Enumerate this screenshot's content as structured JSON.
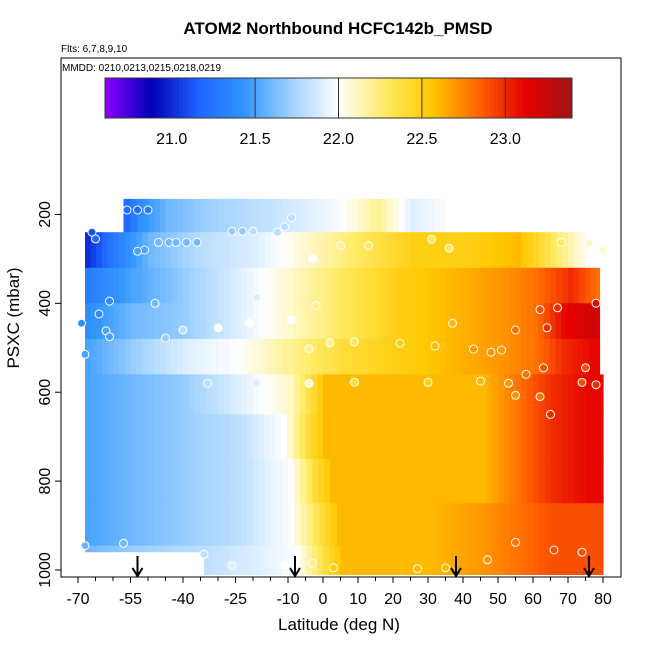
{
  "chart_data": {
    "type": "heatmap",
    "title": "ATOM2 Northbound HCFC142b_PMSD",
    "subtitle_flights": "Flts: 6,7,8,9,10",
    "subtitle_dates": "MMDD: 0210,0213,0215,0218,0219",
    "xlabel": "Latitude (deg N)",
    "ylabel": "PSXC (mbar)",
    "xlim": [
      -70,
      80
    ],
    "ylim": [
      1020,
      0
    ],
    "x_ticks": [
      -70,
      -55,
      -40,
      -25,
      -10,
      0,
      10,
      20,
      30,
      40,
      50,
      60,
      70,
      80
    ],
    "x_tick_labels": [
      "-70",
      "-55",
      "-40",
      "-25",
      "-10",
      "0",
      "10",
      "20",
      "30",
      "40",
      "50",
      "60",
      "70",
      "80"
    ],
    "y_ticks": [
      200,
      400,
      600,
      800,
      1000
    ],
    "y_tick_labels": [
      "200",
      "400",
      "600",
      "800",
      "1000"
    ],
    "colorbar": {
      "range": [
        20.6,
        23.4
      ],
      "ticks": [
        21.0,
        21.5,
        22.0,
        22.5,
        23.0
      ],
      "tick_labels": [
        "21.0",
        "21.5",
        "22.0",
        "22.5",
        "23.0"
      ],
      "colors": [
        "#8b00ff",
        "#0000b4",
        "#1e64ff",
        "#3296ff",
        "#a0d2ff",
        "#ffffff",
        "#ffeb64",
        "#ffc800",
        "#ff6400",
        "#e60000",
        "#a01414"
      ]
    },
    "profile_arrows_lat": [
      -53,
      -8,
      38,
      76
    ],
    "rows": [
      {
        "p": 200,
        "segments": [
          [
            -57,
            21.2
          ],
          [
            -53,
            21.4
          ],
          [
            -45,
            21.6
          ],
          [
            -35,
            21.7
          ],
          [
            -20,
            21.8
          ],
          [
            -5,
            21.9
          ],
          [
            5,
            22.0
          ],
          [
            15,
            22.2
          ],
          [
            25,
            21.9
          ],
          [
            35,
            22.0
          ]
        ]
      },
      {
        "p": 280,
        "segments": [
          [
            -68,
            21.0
          ],
          [
            -60,
            21.3
          ],
          [
            -50,
            21.6
          ],
          [
            -35,
            21.8
          ],
          [
            -20,
            21.9
          ],
          [
            -5,
            22.1
          ],
          [
            10,
            22.3
          ],
          [
            25,
            22.5
          ],
          [
            40,
            22.5
          ],
          [
            55,
            22.6
          ],
          [
            65,
            22.3
          ],
          [
            75,
            22.0
          ]
        ]
      },
      {
        "p": 360,
        "segments": [
          [
            -68,
            21.3
          ],
          [
            -55,
            21.5
          ],
          [
            -40,
            21.7
          ],
          [
            -25,
            21.9
          ],
          [
            -10,
            22.1
          ],
          [
            5,
            22.3
          ],
          [
            20,
            22.5
          ],
          [
            35,
            22.6
          ],
          [
            50,
            22.7
          ],
          [
            60,
            22.8
          ],
          [
            70,
            23.0
          ],
          [
            78,
            22.8
          ]
        ]
      },
      {
        "p": 440,
        "segments": [
          [
            -68,
            21.4
          ],
          [
            -55,
            21.6
          ],
          [
            -40,
            21.7
          ],
          [
            -25,
            21.9
          ],
          [
            -10,
            22.1
          ],
          [
            5,
            22.3
          ],
          [
            20,
            22.5
          ],
          [
            35,
            22.6
          ],
          [
            50,
            22.7
          ],
          [
            60,
            22.8
          ],
          [
            68,
            23.1
          ],
          [
            76,
            23.2
          ]
        ]
      },
      {
        "p": 520,
        "segments": [
          [
            -68,
            21.5
          ],
          [
            -55,
            21.7
          ],
          [
            -40,
            21.9
          ],
          [
            -25,
            22.0
          ],
          [
            -10,
            22.2
          ],
          [
            5,
            22.4
          ],
          [
            20,
            22.5
          ],
          [
            35,
            22.6
          ],
          [
            50,
            22.7
          ],
          [
            60,
            22.8
          ],
          [
            68,
            23.0
          ],
          [
            76,
            23.1
          ]
        ]
      },
      {
        "p": 600,
        "segments": [
          [
            -68,
            21.5
          ],
          [
            -55,
            21.6
          ],
          [
            -40,
            21.7
          ],
          [
            -25,
            21.9
          ],
          [
            -10,
            22.1
          ],
          [
            0,
            22.6
          ],
          [
            15,
            22.6
          ],
          [
            30,
            22.6
          ],
          [
            45,
            22.6
          ],
          [
            55,
            22.8
          ],
          [
            65,
            23.0
          ],
          [
            75,
            23.1
          ]
        ]
      },
      {
        "p": 700,
        "segments": [
          [
            -68,
            21.5
          ],
          [
            -55,
            21.6
          ],
          [
            -40,
            21.7
          ],
          [
            -25,
            21.8
          ],
          [
            -12,
            22.0
          ],
          [
            -5,
            22.4
          ],
          [
            0,
            22.6
          ],
          [
            15,
            22.6
          ],
          [
            30,
            22.6
          ],
          [
            45,
            22.6
          ],
          [
            55,
            22.8
          ],
          [
            65,
            23.0
          ],
          [
            75,
            23.1
          ]
        ]
      },
      {
        "p": 800,
        "segments": [
          [
            -68,
            21.5
          ],
          [
            -55,
            21.6
          ],
          [
            -40,
            21.7
          ],
          [
            -25,
            21.8
          ],
          [
            -10,
            22.0
          ],
          [
            -3,
            22.4
          ],
          [
            2,
            22.6
          ],
          [
            15,
            22.6
          ],
          [
            30,
            22.6
          ],
          [
            45,
            22.6
          ],
          [
            55,
            22.8
          ],
          [
            65,
            23.0
          ],
          [
            75,
            23.1
          ]
        ]
      },
      {
        "p": 900,
        "segments": [
          [
            -68,
            21.5
          ],
          [
            -55,
            21.6
          ],
          [
            -40,
            21.7
          ],
          [
            -25,
            21.8
          ],
          [
            -10,
            22.0
          ],
          [
            -1,
            22.4
          ],
          [
            4,
            22.6
          ],
          [
            15,
            22.6
          ],
          [
            30,
            22.6
          ],
          [
            45,
            22.7
          ],
          [
            55,
            22.8
          ],
          [
            65,
            22.9
          ],
          [
            75,
            22.9
          ]
        ]
      },
      {
        "p": 990,
        "segments": [
          [
            -68,
            21.6
          ],
          [
            -55,
            21.7
          ],
          [
            -35,
            21.8
          ],
          [
            -20,
            21.9
          ],
          [
            -8,
            22.0
          ],
          [
            0,
            22.4
          ],
          [
            5,
            22.6
          ],
          [
            15,
            22.6
          ],
          [
            30,
            22.6
          ],
          [
            45,
            22.7
          ],
          [
            55,
            22.8
          ],
          [
            65,
            22.9
          ],
          [
            75,
            22.9
          ]
        ]
      }
    ],
    "observations": [
      [
        -56,
        190,
        21.2
      ],
      [
        -53,
        190,
        21.2
      ],
      [
        -50,
        190,
        21.3
      ],
      [
        -66,
        240,
        21.1
      ],
      [
        -65,
        255,
        21.2
      ],
      [
        -51,
        280,
        21.5
      ],
      [
        -53,
        283,
        21.5
      ],
      [
        -47,
        263,
        21.6
      ],
      [
        -44,
        263,
        21.6
      ],
      [
        -42,
        263,
        21.6
      ],
      [
        -39,
        263,
        21.6
      ],
      [
        -36,
        263,
        21.6
      ],
      [
        -26,
        238,
        21.7
      ],
      [
        -23,
        238,
        21.7
      ],
      [
        -20,
        238,
        21.8
      ],
      [
        -13,
        240,
        21.8
      ],
      [
        -11,
        228,
        21.8
      ],
      [
        -9,
        207,
        21.8
      ],
      [
        -3,
        300,
        22.0
      ],
      [
        5,
        270,
        22.2
      ],
      [
        13,
        270,
        22.3
      ],
      [
        31,
        256,
        22.3
      ],
      [
        36,
        276,
        22.3
      ],
      [
        68,
        263,
        22.3
      ],
      [
        76,
        265,
        22.1
      ],
      [
        80,
        280,
        22.1
      ],
      [
        -61,
        395,
        21.4
      ],
      [
        -64,
        424,
        21.4
      ],
      [
        -48,
        400,
        21.6
      ],
      [
        -69,
        445,
        21.4
      ],
      [
        -62,
        462,
        21.5
      ],
      [
        -61,
        475,
        21.5
      ],
      [
        -68,
        515,
        21.5
      ],
      [
        -45,
        478,
        21.7
      ],
      [
        -30,
        455,
        22.0
      ],
      [
        -21,
        445,
        22.0
      ],
      [
        -9,
        437,
        22.0
      ],
      [
        -2,
        405,
        22.2
      ],
      [
        -19,
        387,
        21.9
      ],
      [
        -4,
        502,
        22.2
      ],
      [
        2,
        489,
        22.2
      ],
      [
        9,
        487,
        22.3
      ],
      [
        22,
        490,
        22.5
      ],
      [
        32,
        496,
        22.6
      ],
      [
        43,
        503,
        22.7
      ],
      [
        55,
        460,
        22.8
      ],
      [
        62,
        414,
        22.9
      ],
      [
        64,
        455,
        23.0
      ],
      [
        67,
        410,
        23.0
      ],
      [
        78,
        400,
        23.1
      ],
      [
        -40,
        460,
        21.8
      ],
      [
        -33,
        580,
        21.8
      ],
      [
        -19,
        580,
        21.9
      ],
      [
        -4,
        580,
        22.1
      ],
      [
        9,
        578,
        22.4
      ],
      [
        30,
        578,
        22.5
      ],
      [
        45,
        575,
        22.6
      ],
      [
        53,
        580,
        22.7
      ],
      [
        55,
        607,
        22.7
      ],
      [
        62,
        610,
        22.8
      ],
      [
        65,
        650,
        23.0
      ],
      [
        74,
        578,
        22.9
      ],
      [
        78,
        583,
        23.0
      ],
      [
        75,
        545,
        22.9
      ],
      [
        63,
        545,
        22.9
      ],
      [
        58,
        560,
        22.8
      ],
      [
        -68,
        945,
        21.6
      ],
      [
        -57,
        940,
        21.6
      ],
      [
        -34,
        965,
        21.8
      ],
      [
        -26,
        990,
        21.9
      ],
      [
        -11,
        990,
        22.0
      ],
      [
        -3,
        985,
        22.2
      ],
      [
        3,
        995,
        22.5
      ],
      [
        27,
        997,
        22.6
      ],
      [
        35,
        995,
        22.6
      ],
      [
        47,
        977,
        22.7
      ],
      [
        55,
        938,
        22.8
      ],
      [
        66,
        955,
        22.9
      ],
      [
        74,
        960,
        22.9
      ],
      [
        37,
        445,
        22.6
      ],
      [
        48,
        510,
        22.7
      ],
      [
        51,
        505,
        22.7
      ]
    ]
  }
}
